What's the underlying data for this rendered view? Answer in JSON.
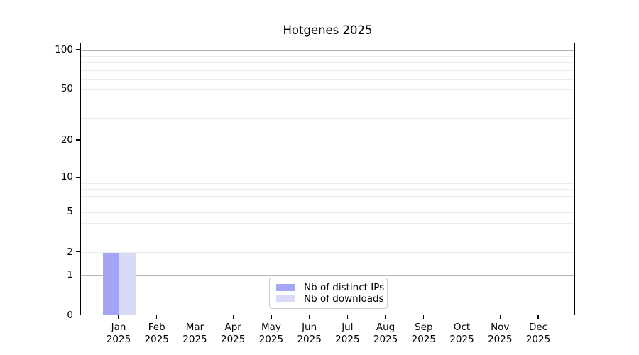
{
  "chart_data": {
    "type": "bar",
    "title": "Hotgenes 2025",
    "year_label": "2025",
    "months": [
      "Jan",
      "Feb",
      "Mar",
      "Apr",
      "May",
      "Jun",
      "Jul",
      "Aug",
      "Sep",
      "Oct",
      "Nov",
      "Dec"
    ],
    "series": [
      {
        "name": "Nb of distinct IPs",
        "color": "#a5a5f5",
        "values": [
          2,
          0,
          0,
          0,
          0,
          0,
          0,
          0,
          0,
          0,
          0,
          0
        ]
      },
      {
        "name": "Nb of downloads",
        "color": "#d9d9f8",
        "values": [
          2,
          0,
          0,
          0,
          0,
          0,
          0,
          0,
          0,
          0,
          0,
          0
        ]
      }
    ],
    "yscale": "log1p",
    "ylim": [
      0,
      115
    ],
    "y_tick_values": [
      0,
      1,
      2,
      5,
      10,
      20,
      50,
      100
    ],
    "y_gridlines_major": [
      1,
      10,
      100
    ],
    "y_gridlines_minor": [
      2,
      3,
      4,
      5,
      6,
      7,
      8,
      9,
      20,
      30,
      40,
      50,
      60,
      70,
      80,
      90
    ],
    "grid": "horizontal",
    "legend_position": "lower center"
  },
  "colors": {
    "background": "#ffffff",
    "spine": "#000000",
    "text": "#000000",
    "grid_minor": "#ececec",
    "grid_major": "#b3b3b3",
    "legend_border": "#cccccc"
  }
}
